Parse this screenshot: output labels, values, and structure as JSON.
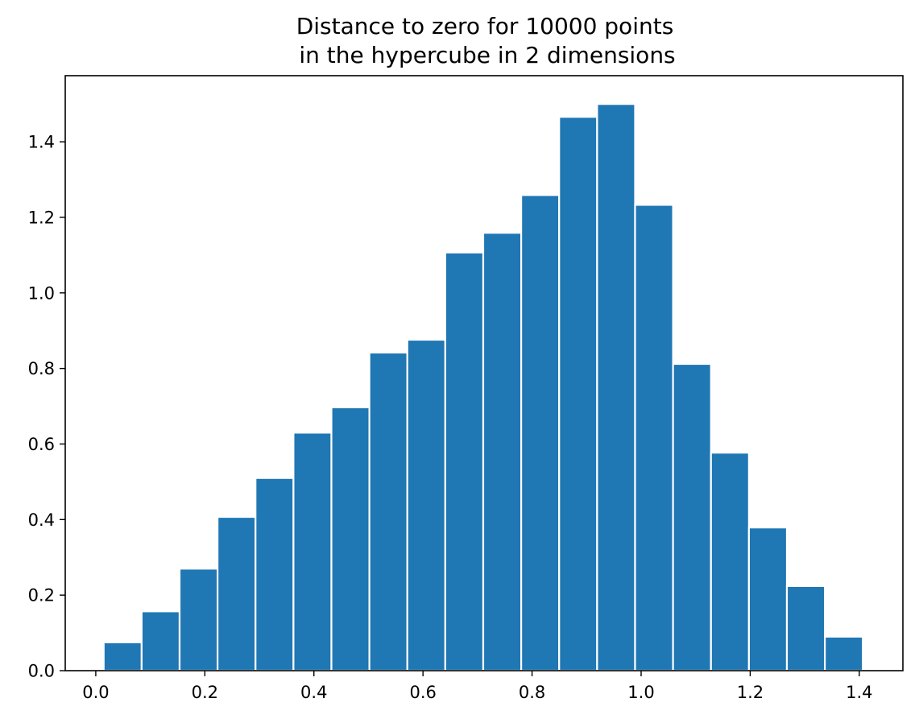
{
  "chart_data": {
    "type": "bar",
    "title": [
      "Distance to zero for 10000 points",
      "in the hypercube in 2 dimensions"
    ],
    "xlabel": "",
    "ylabel": "",
    "x_range": [
      -0.056,
      1.48
    ],
    "y_range": [
      0.0,
      1.575
    ],
    "x_ticks": [
      "0.0",
      "0.2",
      "0.4",
      "0.6",
      "0.8",
      "1.0",
      "1.2",
      "1.4"
    ],
    "y_ticks": [
      "0.0",
      "0.2",
      "0.4",
      "0.6",
      "0.8",
      "1.0",
      "1.2",
      "1.4"
    ],
    "bin_edges": [
      0.0145,
      0.0841,
      0.1537,
      0.2233,
      0.2929,
      0.3625,
      0.4321,
      0.5017,
      0.5713,
      0.6409,
      0.7105,
      0.7801,
      0.8497,
      0.9193,
      0.9889,
      1.0585,
      1.1281,
      1.1977,
      1.2673,
      1.3369,
      1.4065
    ],
    "values": [
      0.075,
      0.157,
      0.27,
      0.407,
      0.51,
      0.63,
      0.697,
      0.842,
      0.876,
      1.107,
      1.159,
      1.259,
      1.466,
      1.5,
      1.233,
      0.812,
      0.577,
      0.379,
      0.224,
      0.09
    ],
    "bar_color": "#1f77b4",
    "edge_color": "#ffffff",
    "grid": false,
    "legend": "none"
  }
}
